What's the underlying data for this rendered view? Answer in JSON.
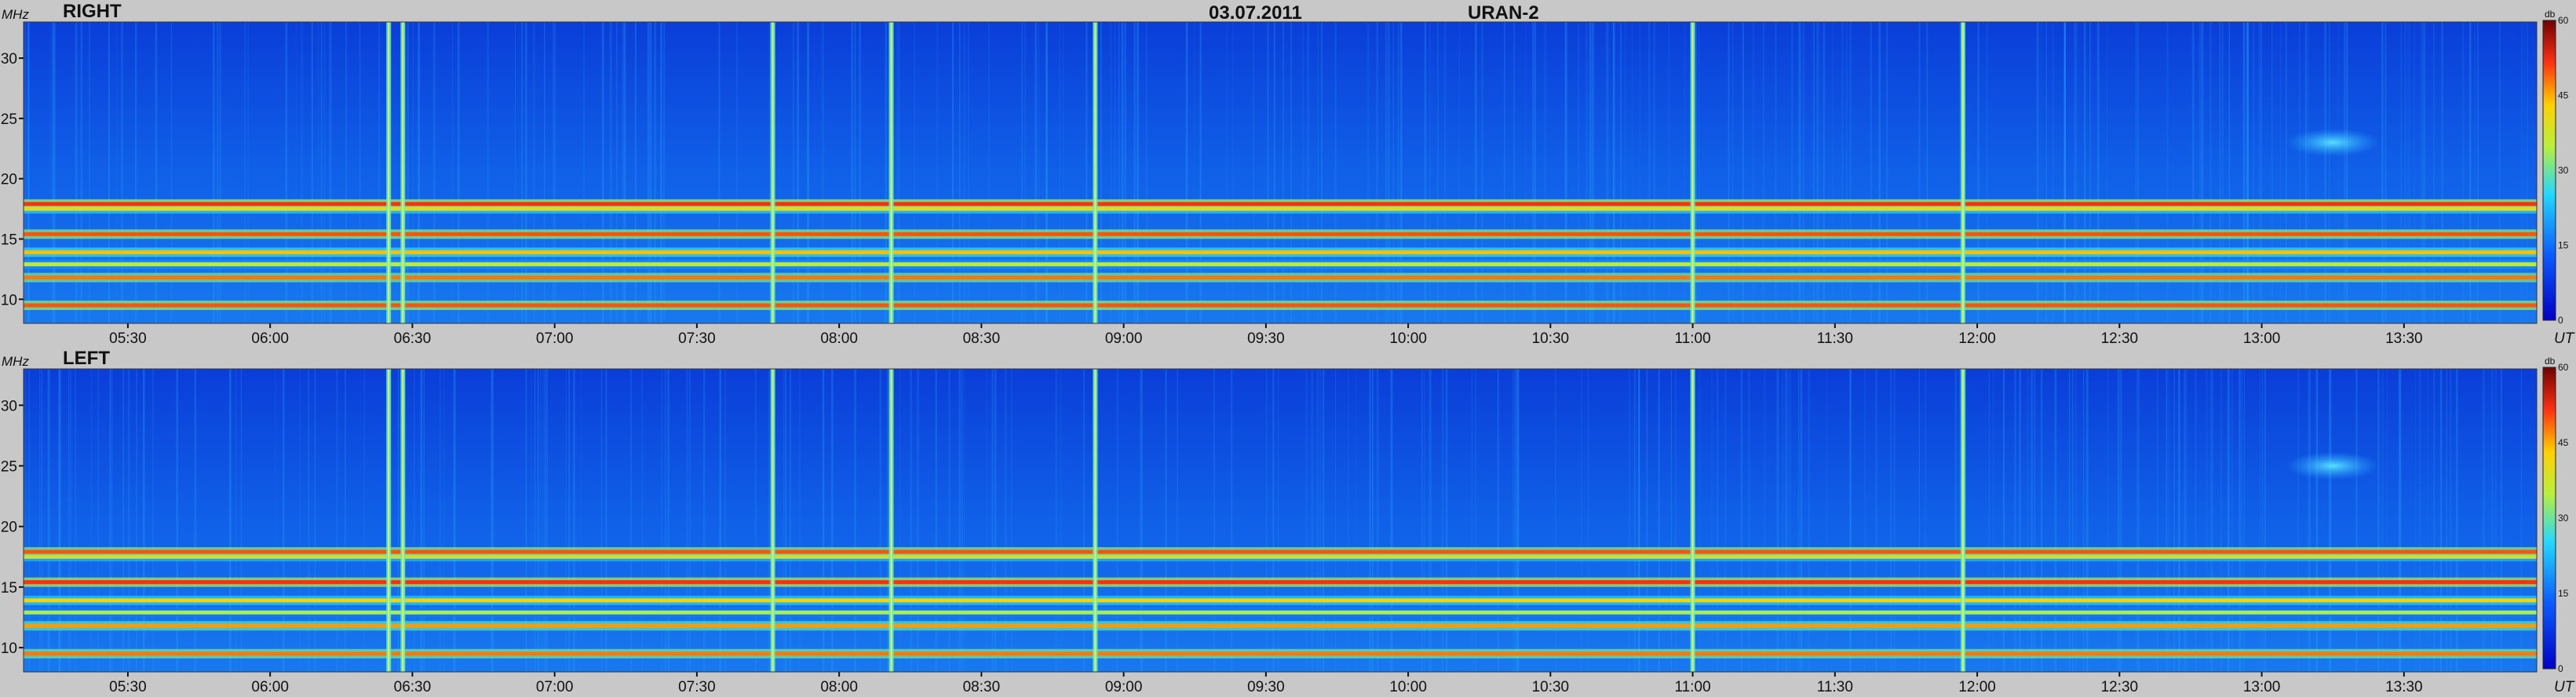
{
  "header": {
    "date": "03.07.2011",
    "instrument": "URAN-2"
  },
  "chart_data": [
    {
      "type": "heatmap",
      "title": "RIGHT",
      "y_unit": "MHz",
      "x_unit": "UT",
      "x_range": [
        "05:08",
        "13:58"
      ],
      "x_ticks": [
        "05:30",
        "06:00",
        "06:30",
        "07:00",
        "07:30",
        "08:00",
        "08:30",
        "09:00",
        "09:30",
        "10:00",
        "10:30",
        "11:00",
        "11:30",
        "12:00",
        "12:30",
        "13:00",
        "13:30"
      ],
      "y_range": [
        8,
        33
      ],
      "y_ticks": [
        10,
        15,
        20,
        25,
        30
      ],
      "colorbar": {
        "unit": "db",
        "range": [
          0,
          60
        ],
        "ticks": [
          0,
          15,
          30,
          45,
          60
        ]
      },
      "background_db": 8,
      "horizontal_bands_mhz": [
        {
          "freq": 9.5,
          "db": 50
        },
        {
          "freq": 11.8,
          "db": 48
        },
        {
          "freq": 12.9,
          "db": 36
        },
        {
          "freq": 13.9,
          "db": 44
        },
        {
          "freq": 15.4,
          "db": 50
        },
        {
          "freq": 17.5,
          "db": 42
        },
        {
          "freq": 17.9,
          "db": 52
        }
      ],
      "vertical_bursts_ut": [
        "06:25",
        "06:28",
        "07:46",
        "08:11",
        "08:54",
        "11:00",
        "11:57"
      ],
      "diffuse_patch": {
        "ut_start": "13:05",
        "ut_end": "13:25",
        "freq_mhz": 23,
        "db": 22
      }
    },
    {
      "type": "heatmap",
      "title": "LEFT",
      "y_unit": "MHz",
      "x_unit": "UT",
      "x_range": [
        "05:08",
        "13:58"
      ],
      "x_ticks": [
        "05:30",
        "06:00",
        "06:30",
        "07:00",
        "07:30",
        "08:00",
        "08:30",
        "09:00",
        "09:30",
        "10:00",
        "10:30",
        "11:00",
        "11:30",
        "12:00",
        "12:30",
        "13:00",
        "13:30"
      ],
      "y_range": [
        8,
        33
      ],
      "y_ticks": [
        10,
        15,
        20,
        25,
        30
      ],
      "colorbar": {
        "unit": "db",
        "range": [
          0,
          60
        ],
        "ticks": [
          0,
          15,
          30,
          45,
          60
        ]
      },
      "background_db": 8,
      "horizontal_bands_mhz": [
        {
          "freq": 9.5,
          "db": 48
        },
        {
          "freq": 11.8,
          "db": 46
        },
        {
          "freq": 12.9,
          "db": 34
        },
        {
          "freq": 13.9,
          "db": 42
        },
        {
          "freq": 15.4,
          "db": 52
        },
        {
          "freq": 17.5,
          "db": 40
        },
        {
          "freq": 17.9,
          "db": 50
        }
      ],
      "vertical_bursts_ut": [
        "06:25",
        "06:28",
        "07:46",
        "08:11",
        "08:54",
        "11:00",
        "11:57"
      ],
      "diffuse_patch": {
        "ut_start": "13:05",
        "ut_end": "13:25",
        "freq_mhz": 25,
        "db": 22
      }
    }
  ]
}
